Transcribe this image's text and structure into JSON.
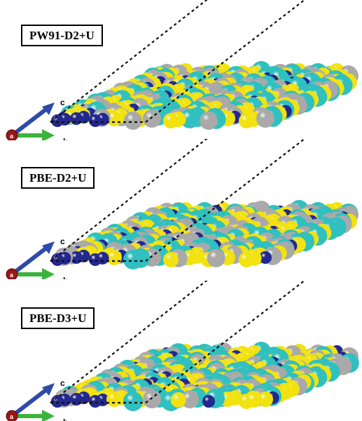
{
  "panels": [
    {
      "label": "PW91-D2+U",
      "axes": {
        "c": "c",
        "b": "b",
        "a": "a"
      }
    },
    {
      "label": "PBE-D2+U",
      "axes": {
        "c": "c",
        "b": "b",
        "a": "a"
      }
    },
    {
      "label": "PBE-D3+U",
      "axes": {
        "c": "c",
        "b": "b",
        "a": "a"
      }
    }
  ],
  "colors": {
    "yellow_atom": "#f2e20f",
    "cyan_atom": "#2fc0bf",
    "gray_atom": "#a9a9a9",
    "blue_atom": "#23288f",
    "axis_c": "#2f4ba8",
    "axis_b": "#3cb43c",
    "axis_a": "#9a1616"
  }
}
